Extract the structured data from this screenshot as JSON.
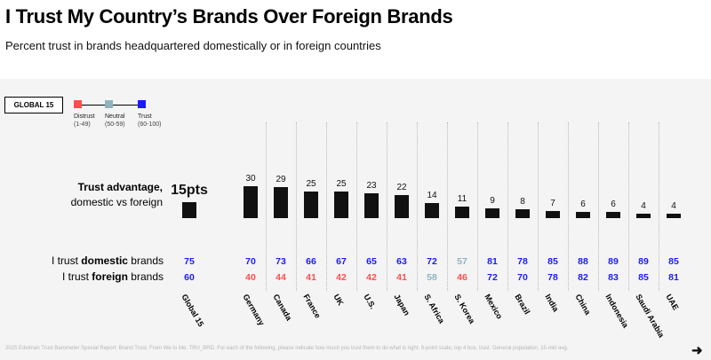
{
  "header": {
    "title": "I Trust My Country’s Brands Over Foreign Brands",
    "subtitle": "Percent trust in brands headquartered domestically or in foreign countries"
  },
  "badge": "GLOBAL 15",
  "legend": [
    {
      "label": "Distrust",
      "range": "(1-49)",
      "color": "#ff4d4d"
    },
    {
      "label": "Neutral",
      "range": "(50-59)",
      "color": "#8fb3bf"
    },
    {
      "label": "Trust",
      "range": "(60-100)",
      "color": "#1a1aff"
    }
  ],
  "row_labels": {
    "advantage_bold": "Trust advantage,",
    "advantage_rest": "domestic vs foreign",
    "domestic_pre": "I trust ",
    "domestic_bold": "domestic",
    "domestic_post": " brands",
    "foreign_pre": "I trust ",
    "foreign_bold": "foreign",
    "foreign_post": " brands"
  },
  "chart_data": {
    "type": "bar",
    "title": "I Trust My Country’s Brands Over Foreign Brands",
    "ylabel": "Trust advantage, domestic vs foreign",
    "ylim": [
      0,
      30
    ],
    "categories": [
      "Global 15",
      "Germany",
      "Canada",
      "France",
      "UK",
      "U.S.",
      "Japan",
      "S. Africa",
      "S. Korea",
      "Mexico",
      "Brazil",
      "India",
      "China",
      "Indonesia",
      "Saudi Arabia",
      "UAE"
    ],
    "advantage_labels": [
      "15pts",
      "30",
      "29",
      "25",
      "25",
      "23",
      "22",
      "14",
      "11",
      "9",
      "8",
      "7",
      "6",
      "6",
      "4",
      "4"
    ],
    "series": [
      {
        "name": "Trust advantage",
        "values": [
          15,
          30,
          29,
          25,
          25,
          23,
          22,
          14,
          11,
          9,
          8,
          7,
          6,
          6,
          4,
          4
        ]
      },
      {
        "name": "I trust domestic brands",
        "values": [
          75,
          70,
          73,
          66,
          67,
          65,
          63,
          72,
          57,
          81,
          78,
          85,
          88,
          89,
          89,
          85
        ]
      },
      {
        "name": "I trust foreign brands",
        "values": [
          60,
          40,
          44,
          41,
          42,
          42,
          41,
          58,
          46,
          72,
          70,
          78,
          82,
          83,
          85,
          81
        ]
      }
    ]
  },
  "footer": "2025 Edelman Trust Barometer Special Report: Brand Trust, From We to Me. TRU_BRD. For each of the following, please indicate how much you trust them to do what is right. 9-point scale; top 4 box, trust. General population, 15-mkt avg.",
  "nav": {
    "next_arrow": "➜"
  }
}
